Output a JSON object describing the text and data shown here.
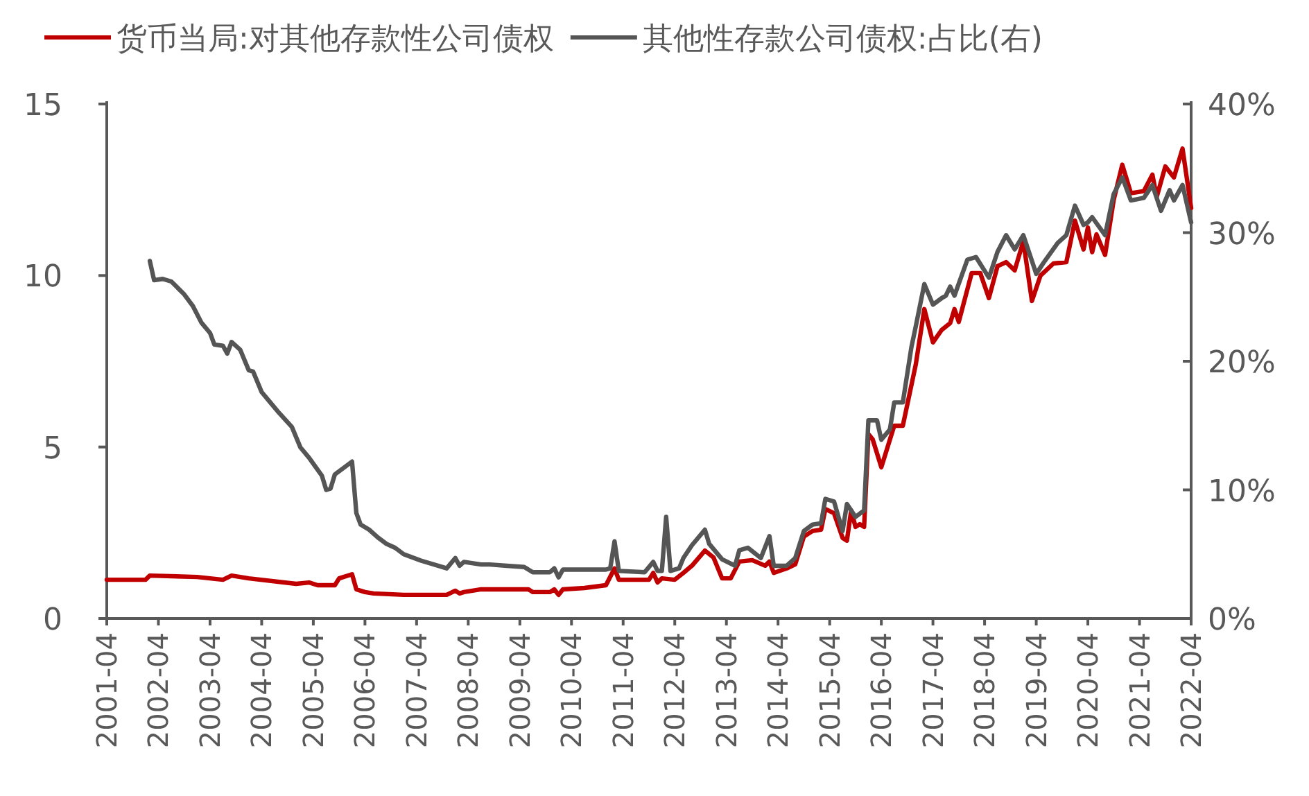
{
  "chart_data": {
    "type": "line",
    "xlim": [
      "2001-04",
      "2022-04"
    ],
    "xticks": [
      "2001-04",
      "2002-04",
      "2003-04",
      "2004-04",
      "2005-04",
      "2006-04",
      "2007-04",
      "2008-04",
      "2009-04",
      "2010-04",
      "2011-04",
      "2012-04",
      "2013-04",
      "2014-04",
      "2015-04",
      "2016-04",
      "2017-04",
      "2018-04",
      "2019-04",
      "2020-04",
      "2021-04",
      "2022-04"
    ],
    "ylim": [
      0,
      15
    ],
    "yticks": [
      0,
      5,
      10,
      15
    ],
    "y2lim": [
      0,
      40
    ],
    "y2ticks": [
      {
        "value": 0,
        "label": "0%"
      },
      {
        "value": 10,
        "label": "10%"
      },
      {
        "value": 20,
        "label": "20%"
      },
      {
        "value": 30,
        "label": "30%"
      },
      {
        "value": 40,
        "label": "40%"
      }
    ],
    "legend": "top",
    "series": [
      {
        "name": "货币当局:对其他存款性公司债权",
        "color": "#c00000",
        "x": [
          "2001-04",
          "2002-01",
          "2002-02",
          "2003-01",
          "2003-07",
          "2003-09",
          "2004-01",
          "2004-12",
          "2005-03",
          "2005-05",
          "2005-09",
          "2005-10",
          "2006-01",
          "2006-02",
          "2006-04",
          "2006-06",
          "2007-01",
          "2007-11",
          "2008-01",
          "2008-02",
          "2008-03",
          "2008-07",
          "2009-06",
          "2009-07",
          "2009-11",
          "2009-12",
          "2010-01",
          "2010-02",
          "2010-07",
          "2010-12",
          "2011-02",
          "2011-03",
          "2011-10",
          "2011-11",
          "2011-12",
          "2012-01",
          "2012-04",
          "2012-06",
          "2012-08",
          "2012-11",
          "2013-01",
          "2013-03",
          "2013-05",
          "2013-07",
          "2013-10",
          "2014-01",
          "2014-02",
          "2014-03",
          "2014-06",
          "2014-08",
          "2014-10",
          "2014-12",
          "2015-02",
          "2015-03",
          "2015-05",
          "2015-07",
          "2015-08",
          "2015-09",
          "2015-10",
          "2015-11",
          "2015-12",
          "2016-01",
          "2016-02",
          "2016-04",
          "2016-05",
          "2016-07",
          "2016-09",
          "2016-12",
          "2017-02",
          "2017-04",
          "2017-06",
          "2017-08",
          "2017-09",
          "2017-10",
          "2018-01",
          "2018-03",
          "2018-05",
          "2018-07",
          "2018-09",
          "2018-11",
          "2019-01",
          "2019-03",
          "2019-05",
          "2019-08",
          "2019-11",
          "2020-01",
          "2020-03",
          "2020-04",
          "2020-05",
          "2020-06",
          "2020-08",
          "2020-10",
          "2020-12",
          "2021-02",
          "2021-05",
          "2021-07",
          "2021-08",
          "2021-10",
          "2021-12",
          "2022-02",
          "2022-04"
        ],
        "values": [
          1.13,
          1.13,
          1.25,
          1.21,
          1.13,
          1.25,
          1.17,
          1.01,
          1.05,
          0.97,
          0.97,
          1.17,
          1.29,
          0.85,
          0.77,
          0.73,
          0.69,
          0.69,
          0.81,
          0.73,
          0.77,
          0.85,
          0.85,
          0.77,
          0.77,
          0.85,
          0.69,
          0.85,
          0.89,
          0.97,
          1.46,
          1.13,
          1.13,
          1.33,
          1.05,
          1.17,
          1.13,
          1.33,
          1.54,
          1.98,
          1.78,
          1.17,
          1.17,
          1.66,
          1.7,
          1.54,
          1.66,
          1.33,
          1.46,
          1.58,
          2.39,
          2.55,
          2.59,
          3.19,
          3.07,
          2.35,
          2.27,
          3.15,
          2.67,
          2.75,
          2.67,
          5.38,
          5.22,
          4.41,
          4.81,
          5.62,
          5.62,
          7.4,
          9.02,
          8.05,
          8.41,
          8.61,
          9.02,
          8.65,
          10.07,
          10.07,
          9.34,
          10.27,
          10.39,
          10.15,
          11.0,
          9.26,
          10.0,
          10.35,
          10.39,
          11.6,
          10.76,
          11.4,
          10.68,
          11.2,
          10.6,
          12.2,
          13.23,
          12.4,
          12.46,
          12.94,
          12.29,
          13.18,
          12.86,
          13.7,
          11.97
        ]
      },
      {
        "name": "其他性存款公司债权:占比(右)",
        "color": "#555555",
        "axis": "y2",
        "x": [
          "2002-02",
          "2002-03",
          "2002-05",
          "2002-07",
          "2002-10",
          "2002-12",
          "2003-02",
          "2003-04",
          "2003-05",
          "2003-07",
          "2003-08",
          "2003-09",
          "2003-11",
          "2004-01",
          "2004-02",
          "2004-04",
          "2004-06",
          "2004-08",
          "2004-11",
          "2005-01",
          "2005-03",
          "2005-06",
          "2005-07",
          "2005-08",
          "2005-09",
          "2006-01",
          "2006-02",
          "2006-03",
          "2006-05",
          "2006-07",
          "2006-09",
          "2006-11",
          "2007-01",
          "2007-05",
          "2007-11",
          "2008-01",
          "2008-02",
          "2008-03",
          "2008-07",
          "2008-09",
          "2009-01",
          "2009-05",
          "2009-07",
          "2009-11",
          "2009-12",
          "2010-01",
          "2010-02",
          "2010-12",
          "2011-01",
          "2011-02",
          "2011-03",
          "2011-09",
          "2011-11",
          "2011-12",
          "2012-01",
          "2012-02",
          "2012-03",
          "2012-05",
          "2012-06",
          "2012-08",
          "2012-11",
          "2012-12",
          "2013-03",
          "2013-06",
          "2013-07",
          "2013-09",
          "2013-12",
          "2014-02",
          "2014-03",
          "2014-06",
          "2014-08",
          "2014-10",
          "2014-12",
          "2015-02",
          "2015-03",
          "2015-05",
          "2015-07",
          "2015-08",
          "2015-10",
          "2015-12",
          "2016-01",
          "2016-03",
          "2016-04",
          "2016-06",
          "2016-07",
          "2016-09",
          "2016-11",
          "2016-12",
          "2017-02",
          "2017-04",
          "2017-06",
          "2017-07",
          "2017-08",
          "2017-09",
          "2017-12",
          "2018-02",
          "2018-05",
          "2018-07",
          "2018-09",
          "2018-11",
          "2019-01",
          "2019-04",
          "2019-06",
          "2019-09",
          "2019-11",
          "2020-01",
          "2020-03",
          "2020-04",
          "2020-05",
          "2020-08",
          "2020-10",
          "2020-12",
          "2021-02",
          "2021-05",
          "2021-07",
          "2021-09",
          "2021-11",
          "2021-12",
          "2022-02",
          "2022-04"
        ],
        "values": [
          27.8,
          26.3,
          26.4,
          26.2,
          25.2,
          24.3,
          23.0,
          22.2,
          21.3,
          21.2,
          20.6,
          21.5,
          20.9,
          19.3,
          19.2,
          17.6,
          16.8,
          16.0,
          14.9,
          13.3,
          12.5,
          11.1,
          10.0,
          10.1,
          11.2,
          12.2,
          8.2,
          7.3,
          6.9,
          6.3,
          5.8,
          5.5,
          5.0,
          4.5,
          3.9,
          4.7,
          4.1,
          4.4,
          4.2,
          4.2,
          4.1,
          4.0,
          3.6,
          3.6,
          3.9,
          3.2,
          3.8,
          3.8,
          3.9,
          6.0,
          3.7,
          3.6,
          4.4,
          3.7,
          3.7,
          7.9,
          3.7,
          3.9,
          4.7,
          5.7,
          6.9,
          5.8,
          4.6,
          4.1,
          5.3,
          5.5,
          4.7,
          6.4,
          4.1,
          4.1,
          4.7,
          6.8,
          7.3,
          7.4,
          9.3,
          9.1,
          6.8,
          8.9,
          7.9,
          8.4,
          15.4,
          15.4,
          13.9,
          14.7,
          16.8,
          16.8,
          21.1,
          22.7,
          26.0,
          24.4,
          24.9,
          25.1,
          25.8,
          25.1,
          27.9,
          28.1,
          26.5,
          28.5,
          29.8,
          28.7,
          29.8,
          26.8,
          27.8,
          29.2,
          29.8,
          32.1,
          30.6,
          30.8,
          31.2,
          29.8,
          33.0,
          34.3,
          32.5,
          32.7,
          33.7,
          31.7,
          33.3,
          32.5,
          33.7,
          30.8
        ]
      }
    ]
  }
}
